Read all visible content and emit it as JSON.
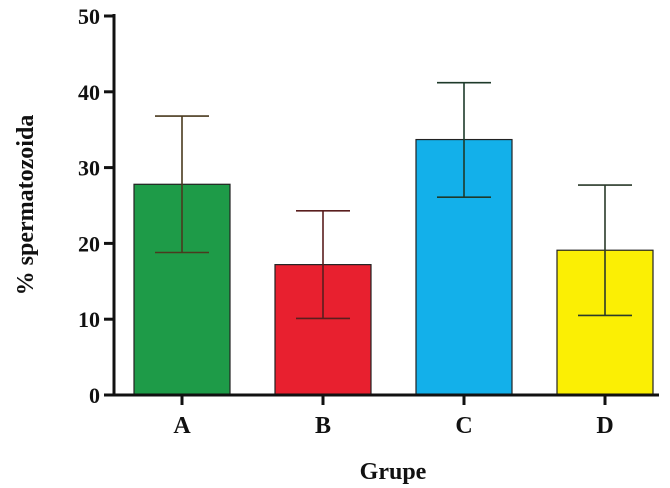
{
  "chart_data": {
    "type": "bar",
    "xlabel": "Grupe",
    "ylabel": "% spermatozoida",
    "ylim": [
      0,
      50
    ],
    "yticks": [
      0,
      10,
      20,
      30,
      40,
      50
    ],
    "grid": false,
    "categories": [
      "A",
      "B",
      "C",
      "D"
    ],
    "values": [
      27.8,
      17.2,
      33.7,
      19.1
    ],
    "error_low": [
      18.8,
      10.1,
      26.1,
      10.5
    ],
    "error_high": [
      36.8,
      24.3,
      41.2,
      27.7
    ],
    "bar_colors": [
      "#1e9b48",
      "#e8202f",
      "#13b0ea",
      "#fbef04"
    ],
    "errorbar_colors": [
      "#4a3a1e",
      "#5a1e1e",
      "#1e3a2a",
      "#2a3a2a"
    ]
  }
}
